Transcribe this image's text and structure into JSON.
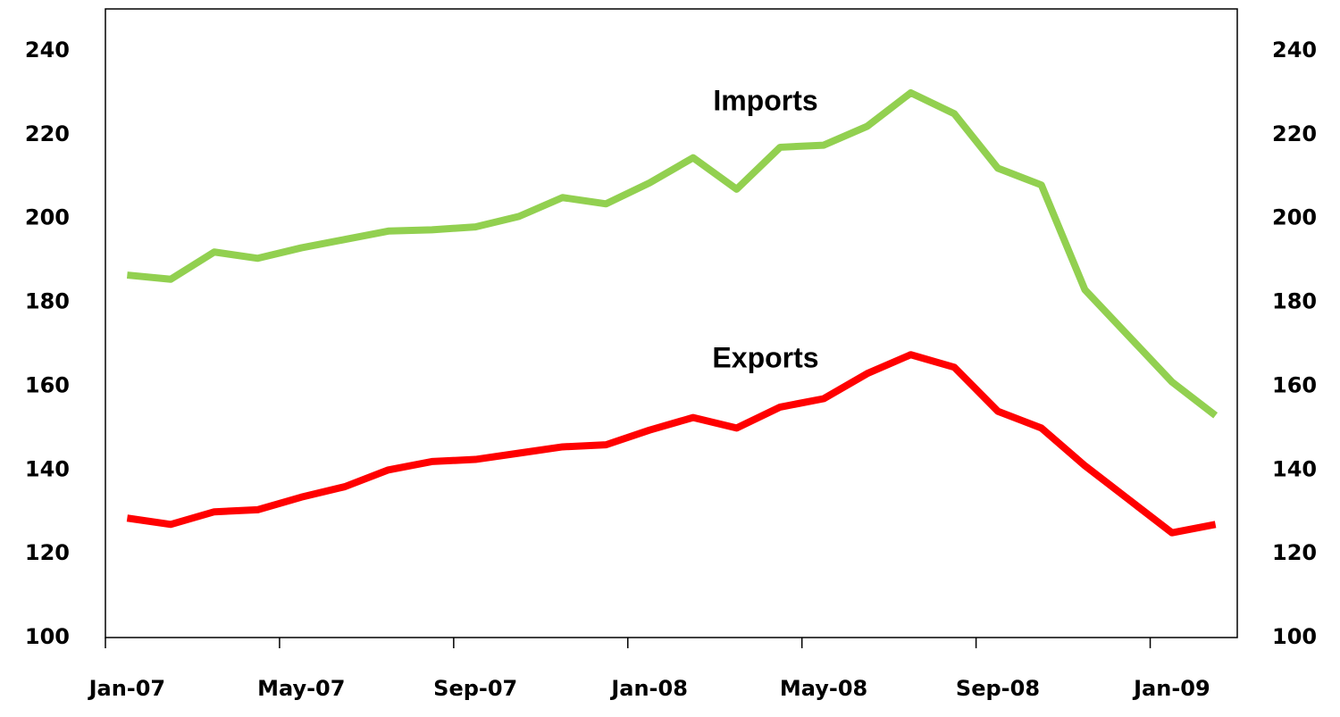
{
  "chart_data": {
    "type": "line",
    "categories": [
      "Jan-07",
      null,
      null,
      null,
      "May-07",
      null,
      null,
      null,
      "Sep-07",
      null,
      null,
      null,
      "Jan-08",
      null,
      null,
      null,
      "May-08",
      null,
      null,
      null,
      "Sep-08",
      null,
      null,
      null,
      "Jan-09",
      null
    ],
    "series": [
      {
        "name": "Imports",
        "color": "#92d050",
        "values": [
          186.5,
          185.5,
          192,
          190.5,
          193,
          195,
          197,
          197.3,
          198,
          200.5,
          205,
          203.5,
          208.5,
          214.5,
          207,
          217,
          217.5,
          222,
          230,
          225,
          212,
          208,
          183,
          172,
          161,
          153
        ]
      },
      {
        "name": "Exports",
        "color": "#ff0000",
        "values": [
          128.5,
          127,
          130,
          130.5,
          133.5,
          136,
          140,
          142,
          142.5,
          144,
          145.5,
          146,
          149.5,
          152.5,
          150,
          155,
          157,
          163,
          167.5,
          164.5,
          154,
          150,
          141,
          133,
          125,
          127
        ]
      }
    ],
    "ylim": [
      100,
      240
    ],
    "yticks": [
      100,
      120,
      140,
      160,
      180,
      200,
      220,
      240
    ],
    "y2lim": [
      100,
      240
    ],
    "y2ticks": [
      100,
      120,
      140,
      160,
      180,
      200,
      220,
      240
    ],
    "grid": false
  }
}
